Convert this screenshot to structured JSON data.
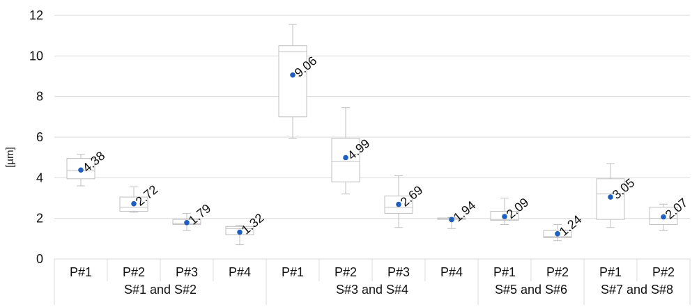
{
  "chart_data": {
    "type": "box",
    "ylabel": "[µm]",
    "ylim": [
      0,
      12
    ],
    "yticks": [
      "0",
      "2",
      "4",
      "6",
      "8",
      "10",
      "12"
    ],
    "grid": true,
    "colors": {
      "box": "#bfbfbf",
      "grid": "#d9d9d9",
      "mean_marker": "#1f5fbf"
    },
    "groups": [
      {
        "label": "S#1 and S#2",
        "span": 4
      },
      {
        "label": "S#3 and S#4",
        "span": 4
      },
      {
        "label": "S#5 and S#6",
        "span": 2
      },
      {
        "label": "S#7 and S#8",
        "span": 2
      }
    ],
    "boxes": [
      {
        "category": "P#1",
        "min": 3.6,
        "q1": 3.95,
        "median": 4.35,
        "q3": 4.95,
        "max": 5.15,
        "mean": 4.38,
        "mean_label": "4.38"
      },
      {
        "category": "P#2",
        "min": 2.3,
        "q1": 2.35,
        "median": 2.55,
        "q3": 3.05,
        "max": 3.55,
        "mean": 2.72,
        "mean_label": "2.72"
      },
      {
        "category": "P#3",
        "min": 1.4,
        "q1": 1.7,
        "median": 1.75,
        "q3": 1.95,
        "max": 2.25,
        "mean": 1.79,
        "mean_label": "1.79"
      },
      {
        "category": "P#4",
        "min": 0.7,
        "q1": 1.2,
        "median": 1.5,
        "q3": 1.6,
        "max": 1.65,
        "mean": 1.32,
        "mean_label": "1.32"
      },
      {
        "category": "P#1",
        "min": 5.95,
        "q1": 7.0,
        "median": 10.2,
        "q3": 10.5,
        "max": 11.55,
        "mean": 9.06,
        "mean_label": "9.06"
      },
      {
        "category": "P#2",
        "min": 3.2,
        "q1": 3.8,
        "median": 4.8,
        "q3": 5.95,
        "max": 7.45,
        "mean": 4.99,
        "mean_label": "4.99"
      },
      {
        "category": "P#3",
        "min": 1.55,
        "q1": 2.25,
        "median": 2.55,
        "q3": 3.1,
        "max": 4.1,
        "mean": 2.69,
        "mean_label": "2.69"
      },
      {
        "category": "P#4",
        "min": 1.5,
        "q1": 1.95,
        "median": 2.0,
        "q3": 2.02,
        "max": 2.05,
        "mean": 1.94,
        "mean_label": "1.94"
      },
      {
        "category": "P#1",
        "min": 1.7,
        "q1": 1.9,
        "median": 1.95,
        "q3": 2.35,
        "max": 3.0,
        "mean": 2.09,
        "mean_label": "2.09"
      },
      {
        "category": "P#2",
        "min": 0.9,
        "q1": 1.05,
        "median": 1.1,
        "q3": 1.4,
        "max": 1.7,
        "mean": 1.24,
        "mean_label": "1.24"
      },
      {
        "category": "P#1",
        "min": 1.55,
        "q1": 1.95,
        "median": 3.2,
        "q3": 3.95,
        "max": 4.7,
        "mean": 3.05,
        "mean_label": "3.05"
      },
      {
        "category": "P#2",
        "min": 1.4,
        "q1": 1.7,
        "median": 2.0,
        "q3": 2.55,
        "max": 2.7,
        "mean": 2.07,
        "mean_label": "2.07"
      }
    ]
  }
}
